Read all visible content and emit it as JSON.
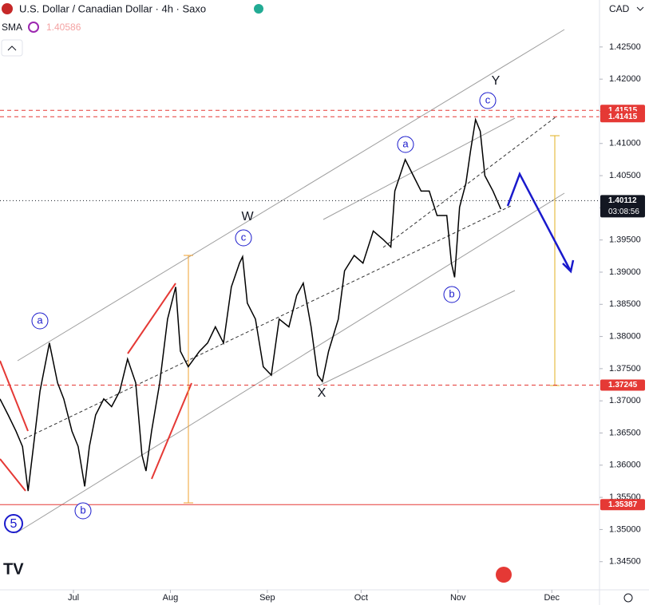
{
  "header": {
    "symbol": "U.S. Dollar / Canadian Dollar · 4h · Saxo",
    "indicator": "SMA",
    "indicator_value": "1.40586",
    "currency": "CAD",
    "countdown": "03:08:56"
  },
  "waves": [
    "a",
    "b",
    "5",
    "c",
    "W",
    "a",
    "c",
    "Y",
    "X",
    "b"
  ],
  "chart_data": {
    "type": "line",
    "x": [
      -23.5,
      -20.9,
      -18.4,
      -16.3,
      -14.5,
      -12.8,
      -10.7,
      -7.7,
      -5.1,
      -3.1,
      -0.5,
      1.5,
      3.6,
      5.1,
      7.1,
      9.7,
      12.2,
      14.8,
      17.3,
      19.9,
      21.9,
      23.2,
      25,
      27.6,
      30.1,
      32.7,
      34.2,
      36.7,
      40.3,
      42.9,
      45.4,
      48,
      50.5,
      53.1,
      54.1,
      55.6,
      58.2,
      60.7,
      63.3,
      65.8,
      68.9,
      71.4,
      73.5,
      76,
      78.1,
      79.6,
      81.6,
      84.7,
      86.7,
      89.8,
      92.6,
      95.9,
      99,
      101.5,
      102.8,
      106.1,
      108.7,
      111.2,
      113.8,
      116.3,
      119.4,
      120.9,
      121.9,
      123.5,
      125.5,
      127,
      128.6,
      130.1,
      131.6,
      134.2,
      136.7
    ],
    "series": [
      {
        "name": "USDCAD",
        "color": "#000000",
        "values": [
          1.3703,
          1.3678,
          1.3653,
          1.3629,
          1.356,
          1.3629,
          1.3715,
          1.379,
          1.3728,
          1.3703,
          1.3653,
          1.3629,
          1.3567,
          1.3629,
          1.3678,
          1.3703,
          1.3691,
          1.3715,
          1.3765,
          1.3728,
          1.3616,
          1.3591,
          1.3653,
          1.3728,
          1.3827,
          1.3877,
          1.3777,
          1.3753,
          1.3777,
          1.379,
          1.3815,
          1.379,
          1.3877,
          1.3914,
          1.3924,
          1.3852,
          1.3827,
          1.3753,
          1.374,
          1.3827,
          1.3815,
          1.3864,
          1.3883,
          1.3815,
          1.374,
          1.373,
          1.3777,
          1.3827,
          1.3902,
          1.3926,
          1.3914,
          1.3964,
          1.3951,
          1.3939,
          1.4026,
          1.4075,
          1.405,
          1.4026,
          1.4026,
          1.3988,
          1.3988,
          1.3914,
          1.3892,
          1.4001,
          1.4038,
          1.4088,
          1.4137,
          1.4119,
          1.405,
          1.4026,
          1.3998
        ]
      }
    ],
    "xlim": [
      -23.5,
      168
    ],
    "xticks": [
      {
        "value": 0,
        "label": "Jul"
      },
      {
        "value": 31,
        "label": "Aug"
      },
      {
        "value": 62,
        "label": "Sep"
      },
      {
        "value": 92,
        "label": "Oct"
      },
      {
        "value": 123,
        "label": "Nov"
      },
      {
        "value": 153,
        "label": "Dec"
      }
    ],
    "ylim": [
      1.3405,
      1.4323
    ],
    "yticks": [
      {
        "value": 1.345,
        "label": "1.34500"
      },
      {
        "value": 1.35,
        "label": "1.35000"
      },
      {
        "value": 1.355,
        "label": "1.35500"
      },
      {
        "value": 1.36,
        "label": "1.36000"
      },
      {
        "value": 1.365,
        "label": "1.36500"
      },
      {
        "value": 1.37,
        "label": "1.37000"
      },
      {
        "value": 1.375,
        "label": "1.37500"
      },
      {
        "value": 1.38,
        "label": "1.38000"
      },
      {
        "value": 1.385,
        "label": "1.38500"
      },
      {
        "value": 1.39,
        "label": "1.39000"
      },
      {
        "value": 1.395,
        "label": "1.39500"
      },
      {
        "value": 1.4,
        "label": "1.40000"
      },
      {
        "value": 1.405,
        "label": "1.40500"
      },
      {
        "value": 1.41,
        "label": "1.41000"
      },
      {
        "value": 1.415,
        "label": "1.41500"
      },
      {
        "value": 1.42,
        "label": "1.42000"
      },
      {
        "value": 1.425,
        "label": "1.42500"
      }
    ],
    "levels": [
      {
        "value": 1.41515,
        "color": "#e53935",
        "style": "dashed"
      },
      {
        "value": 1.41415,
        "color": "#e53935",
        "style": "dashed"
      },
      {
        "value": 1.40112,
        "color": "#131722",
        "style": "dotted"
      },
      {
        "value": 1.37245,
        "color": "#e53935",
        "style": "dashed"
      },
      {
        "value": 1.35387,
        "color": "#e53935",
        "style": "solid"
      }
    ]
  }
}
